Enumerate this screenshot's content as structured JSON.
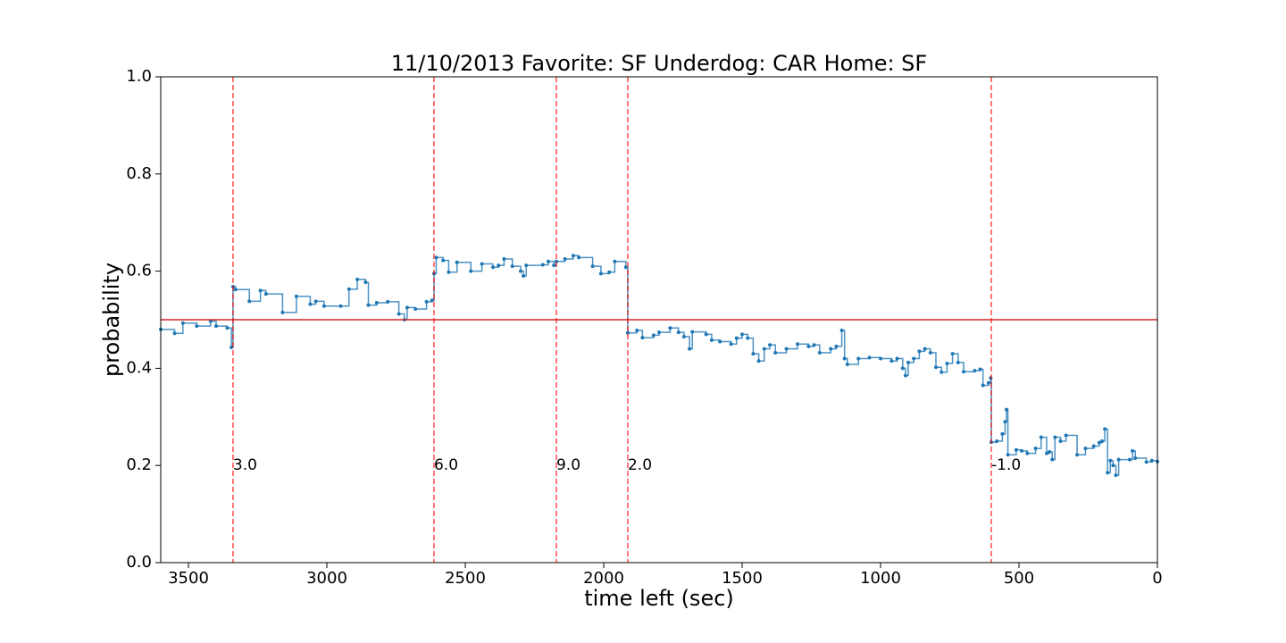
{
  "chart_data": {
    "type": "step",
    "title": "11/10/2013 Favorite: SF Underdog: CAR Home: SF",
    "xlabel": "time left (sec)",
    "ylabel": "probability",
    "xlim": [
      3600,
      0
    ],
    "ylim": [
      0,
      1
    ],
    "xticks": [
      3500,
      3000,
      2500,
      2000,
      1500,
      1000,
      500,
      0
    ],
    "yticks": [
      {
        "value": 0,
        "label": "0.0"
      },
      0.2,
      0.4,
      0.6,
      0.8,
      {
        "value": 1,
        "label": "1.0"
      }
    ],
    "series": [
      {
        "color": "#1f77b4",
        "x": [
          3600,
          3550,
          3520,
          3470,
          3420,
          3400,
          3360,
          3345,
          3339,
          3330,
          3280,
          3240,
          3220,
          3160,
          3110,
          3060,
          3040,
          3010,
          2950,
          2920,
          2890,
          2860,
          2850,
          2820,
          2780,
          2740,
          2720,
          2710,
          2680,
          2640,
          2620,
          2613,
          2605,
          2580,
          2560,
          2530,
          2480,
          2440,
          2400,
          2380,
          2360,
          2330,
          2300,
          2290,
          2280,
          2220,
          2200,
          2180,
          2171,
          2140,
          2110,
          2090,
          2040,
          2010,
          1980,
          1960,
          1920,
          1913,
          1880,
          1860,
          1820,
          1800,
          1760,
          1730,
          1710,
          1690,
          1680,
          1630,
          1610,
          1580,
          1540,
          1520,
          1500,
          1480,
          1460,
          1440,
          1420,
          1400,
          1380,
          1340,
          1300,
          1260,
          1240,
          1220,
          1180,
          1160,
          1140,
          1130,
          1120,
          1080,
          1040,
          1000,
          960,
          940,
          920,
          910,
          900,
          880,
          860,
          840,
          820,
          800,
          780,
          760,
          740,
          720,
          700,
          660,
          640,
          630,
          610,
          602,
          600,
          580,
          560,
          550,
          545,
          540,
          510,
          490,
          470,
          440,
          420,
          400,
          390,
          380,
          370,
          350,
          330,
          290,
          260,
          230,
          210,
          200,
          190,
          180,
          170,
          160,
          150,
          140,
          100,
          90,
          80,
          40,
          20,
          0
        ],
        "values": [
          0.48,
          0.472,
          0.493,
          0.487,
          0.497,
          0.487,
          0.483,
          0.443,
          0.568,
          0.562,
          0.538,
          0.56,
          0.553,
          0.515,
          0.548,
          0.532,
          0.538,
          0.528,
          0.528,
          0.563,
          0.583,
          0.577,
          0.53,
          0.535,
          0.537,
          0.512,
          0.5,
          0.525,
          0.522,
          0.537,
          0.54,
          0.595,
          0.628,
          0.622,
          0.598,
          0.618,
          0.6,
          0.615,
          0.608,
          0.612,
          0.625,
          0.61,
          0.6,
          0.59,
          0.612,
          0.613,
          0.62,
          0.612,
          0.62,
          0.625,
          0.632,
          0.628,
          0.61,
          0.595,
          0.598,
          0.62,
          0.608,
          0.473,
          0.478,
          0.463,
          0.468,
          0.474,
          0.483,
          0.474,
          0.465,
          0.44,
          0.475,
          0.47,
          0.458,
          0.455,
          0.45,
          0.462,
          0.47,
          0.462,
          0.43,
          0.415,
          0.44,
          0.448,
          0.432,
          0.44,
          0.45,
          0.445,
          0.448,
          0.432,
          0.44,
          0.445,
          0.478,
          0.42,
          0.408,
          0.42,
          0.422,
          0.42,
          0.415,
          0.42,
          0.4,
          0.385,
          0.412,
          0.42,
          0.435,
          0.44,
          0.432,
          0.402,
          0.392,
          0.41,
          0.43,
          0.412,
          0.393,
          0.395,
          0.398,
          0.365,
          0.37,
          0.38,
          0.248,
          0.25,
          0.265,
          0.29,
          0.315,
          0.222,
          0.232,
          0.23,
          0.225,
          0.235,
          0.258,
          0.225,
          0.228,
          0.212,
          0.258,
          0.25,
          0.262,
          0.222,
          0.235,
          0.24,
          0.247,
          0.25,
          0.275,
          0.185,
          0.21,
          0.2,
          0.18,
          0.212,
          0.212,
          0.23,
          0.215,
          0.207,
          0.21,
          0.208
        ]
      }
    ],
    "vlines": {
      "x": [
        3339,
        2613,
        2171,
        1913,
        600
      ],
      "labels": [
        "3.0",
        "6.0",
        "9.0",
        "2.0",
        "-1.0"
      ],
      "label_y": 0.2,
      "color": "#ff0000"
    },
    "hline": {
      "y": 0.5,
      "color": "#d62728"
    }
  }
}
